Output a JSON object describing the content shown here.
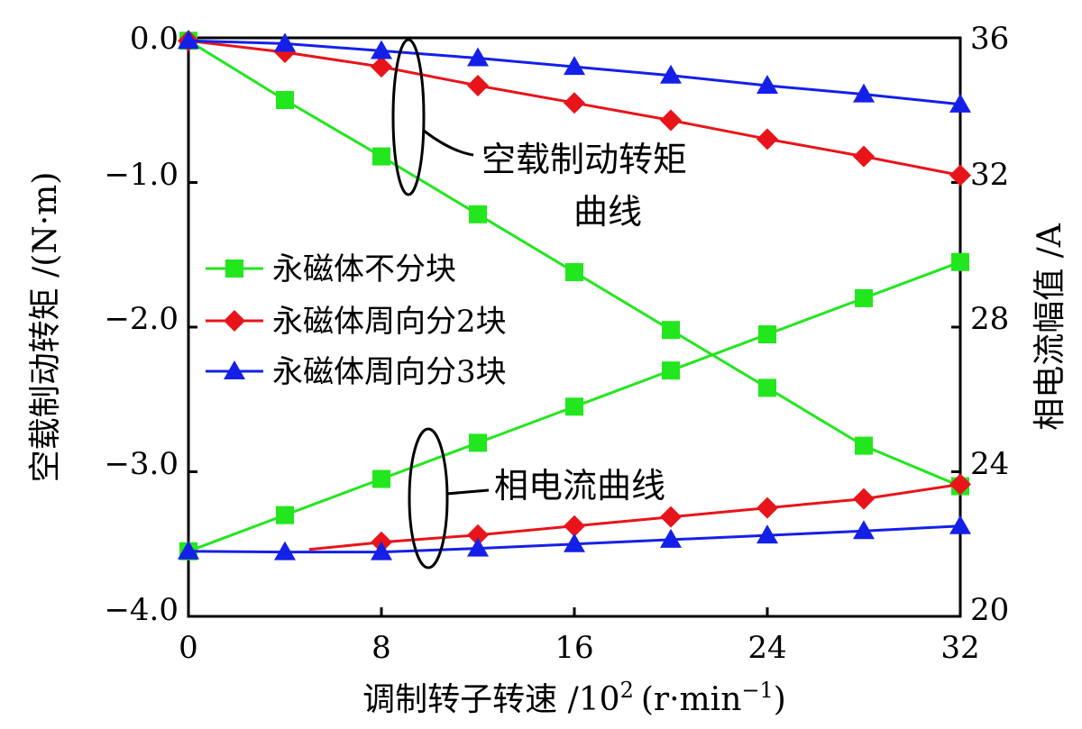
{
  "chart_data": {
    "type": "line",
    "x": [
      0,
      4,
      8,
      12,
      16,
      20,
      24,
      28,
      32
    ],
    "xlim": [
      0,
      32
    ],
    "xticks": [
      "0",
      "8",
      "16",
      "24",
      "32"
    ],
    "xlabel": "调制转子转速 /10",
    "xlabel_sup": "2",
    "xlabel_unit": "(r·min",
    "xlabel_unit_sup": "−1",
    "xlabel_unit_close": ")",
    "ylabel_left": "空载制动转矩 /(N·m)",
    "ylim_left": [
      -4.0,
      0.0
    ],
    "yticks_left": [
      "0.0",
      "−1.0",
      "−2.0",
      "−3.0",
      "−4.0"
    ],
    "ylabel_right": "相电流幅值 /A",
    "ylim_right": [
      20,
      36
    ],
    "yticks_right": [
      "36",
      "32",
      "28",
      "24",
      "20"
    ],
    "legend": {
      "placement": "center-left",
      "entries": [
        "永磁体不分块",
        "永磁体周向分2块",
        "永磁体周向分3块"
      ]
    },
    "annotations": {
      "torque_curves": [
        "空载制动转矩",
        "曲线"
      ],
      "current_curves": "相电流曲线"
    },
    "series": [
      {
        "name": "永磁体不分块",
        "quantity": "torque",
        "axis": "left",
        "color": "#22e61e",
        "marker": "square",
        "values": [
          -0.02,
          -0.43,
          -0.82,
          -1.22,
          -1.62,
          -2.02,
          -2.42,
          -2.82,
          -3.1
        ]
      },
      {
        "name": "永磁体周向分2块",
        "quantity": "torque",
        "axis": "left",
        "color": "#e8141a",
        "marker": "diamond",
        "values": [
          -0.02,
          -0.1,
          -0.2,
          -0.33,
          -0.45,
          -0.57,
          -0.7,
          -0.82,
          -0.95
        ]
      },
      {
        "name": "永磁体周向分3块",
        "quantity": "torque",
        "axis": "left",
        "color": "#1420e8",
        "marker": "triangle",
        "values": [
          -0.02,
          -0.04,
          -0.09,
          -0.14,
          -0.2,
          -0.26,
          -0.33,
          -0.39,
          -0.46
        ]
      },
      {
        "name": "永磁体不分块",
        "quantity": "current",
        "axis": "right",
        "color": "#22e61e",
        "marker": "square",
        "values": [
          21.8,
          22.8,
          23.8,
          24.8,
          25.8,
          26.8,
          27.8,
          28.8,
          29.8
        ]
      },
      {
        "name": "永磁体周向分2块",
        "quantity": "current",
        "axis": "right",
        "color": "#e8141a",
        "marker": "diamond",
        "x": [
          5,
          8,
          12,
          16,
          20,
          24,
          28,
          32
        ],
        "values": [
          21.85,
          22.05,
          22.25,
          22.5,
          22.75,
          23.0,
          23.25,
          23.65
        ]
      },
      {
        "name": "永磁体周向分3块",
        "quantity": "current",
        "axis": "right",
        "color": "#1420e8",
        "marker": "triangle",
        "values": [
          21.8,
          21.78,
          21.78,
          21.88,
          22.0,
          22.12,
          22.24,
          22.36,
          22.5
        ]
      }
    ]
  }
}
